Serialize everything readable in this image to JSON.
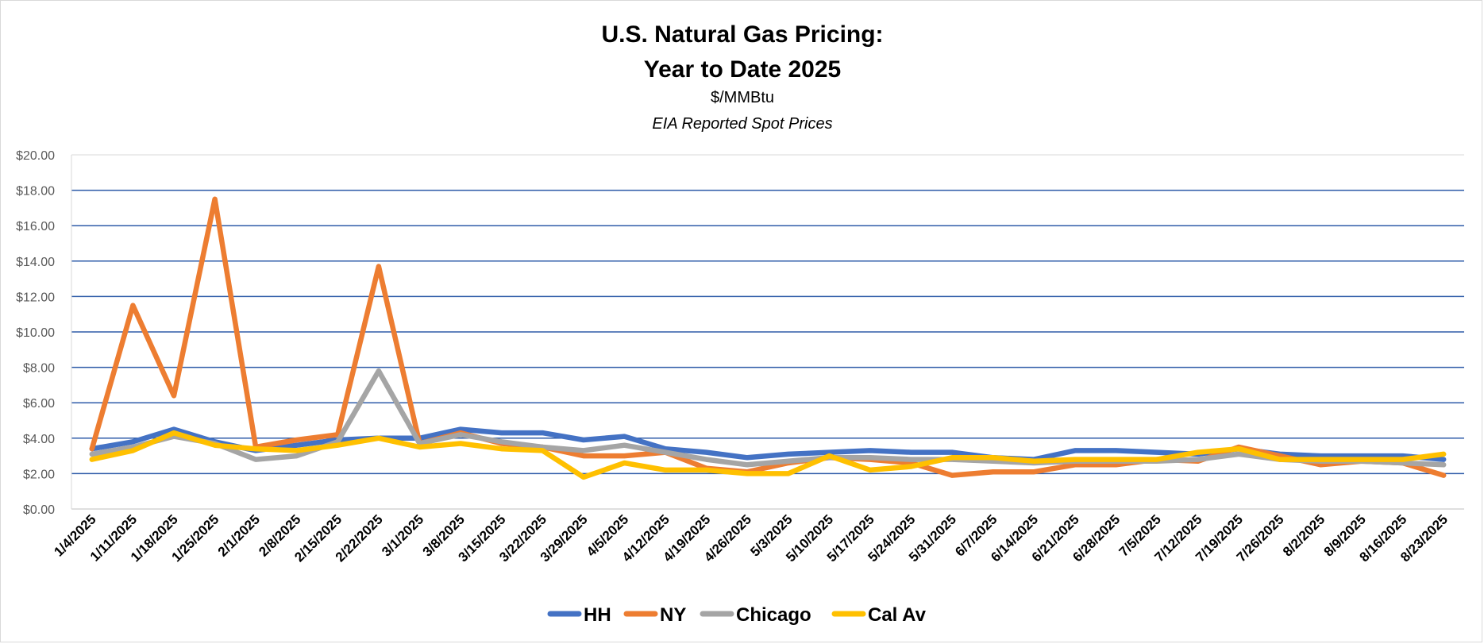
{
  "chart_data": {
    "type": "line",
    "title": "U.S. Natural Gas Pricing:",
    "title_line2": "Year to Date 2025",
    "subtitle": "$/MMBtu",
    "subtitle2": "EIA Reported Spot Prices",
    "ylim": [
      0,
      20
    ],
    "y_ticks": [
      "$0.00",
      "$2.00",
      "$4.00",
      "$6.00",
      "$8.00",
      "$10.00",
      "$12.00",
      "$14.00",
      "$16.00",
      "$18.00",
      "$20.00"
    ],
    "grid": true,
    "legend_position": "bottom",
    "categories": [
      "1/4/2025",
      "1/11/2025",
      "1/18/2025",
      "1/25/2025",
      "2/1/2025",
      "2/8/2025",
      "2/15/2025",
      "2/22/2025",
      "3/1/2025",
      "3/8/2025",
      "3/15/2025",
      "3/22/2025",
      "3/29/2025",
      "4/5/2025",
      "4/12/2025",
      "4/19/2025",
      "4/26/2025",
      "5/3/2025",
      "5/10/2025",
      "5/17/2025",
      "5/24/2025",
      "5/31/2025",
      "6/7/2025",
      "6/14/2025",
      "6/21/2025",
      "6/28/2025",
      "7/5/2025",
      "7/12/2025",
      "7/19/2025",
      "7/26/2025",
      "8/2/2025",
      "8/9/2025",
      "8/16/2025",
      "8/23/2025"
    ],
    "series": [
      {
        "name": "HH",
        "color": "#4472C4",
        "values": [
          3.4,
          3.8,
          4.5,
          3.8,
          3.3,
          3.6,
          3.9,
          4.0,
          4.0,
          4.5,
          4.3,
          4.3,
          3.9,
          4.1,
          3.4,
          3.2,
          2.9,
          3.1,
          3.2,
          3.3,
          3.2,
          3.2,
          2.9,
          2.8,
          3.3,
          3.3,
          3.2,
          3.1,
          3.4,
          3.1,
          3.0,
          3.0,
          3.0,
          2.8
        ]
      },
      {
        "name": "NY",
        "color": "#ED7D31",
        "values": [
          3.4,
          11.5,
          6.4,
          17.5,
          3.5,
          3.9,
          4.2,
          13.7,
          3.7,
          4.3,
          3.7,
          3.5,
          3.0,
          3.0,
          3.2,
          2.3,
          2.1,
          2.6,
          2.9,
          2.8,
          2.6,
          1.9,
          2.1,
          2.1,
          2.5,
          2.5,
          2.8,
          2.7,
          3.5,
          3.0,
          2.5,
          2.7,
          2.6,
          1.9
        ]
      },
      {
        "name": "Chicago",
        "color": "#A5A5A5",
        "values": [
          3.1,
          3.5,
          4.1,
          3.7,
          2.8,
          3.0,
          3.8,
          7.8,
          3.7,
          4.2,
          3.8,
          3.5,
          3.3,
          3.6,
          3.2,
          2.8,
          2.5,
          2.7,
          2.9,
          2.9,
          2.8,
          2.8,
          2.7,
          2.6,
          2.7,
          2.7,
          2.7,
          2.8,
          3.1,
          2.8,
          2.7,
          2.7,
          2.6,
          2.5
        ]
      },
      {
        "name": "Cal Av",
        "color": "#FFC000",
        "values": [
          2.8,
          3.3,
          4.3,
          3.6,
          3.4,
          3.3,
          3.6,
          4.0,
          3.5,
          3.7,
          3.4,
          3.3,
          1.8,
          2.6,
          2.2,
          2.2,
          2.0,
          2.0,
          3.0,
          2.2,
          2.4,
          2.9,
          2.9,
          2.7,
          2.8,
          2.8,
          2.8,
          3.2,
          3.4,
          2.8,
          2.8,
          2.8,
          2.8,
          3.1
        ]
      }
    ]
  }
}
